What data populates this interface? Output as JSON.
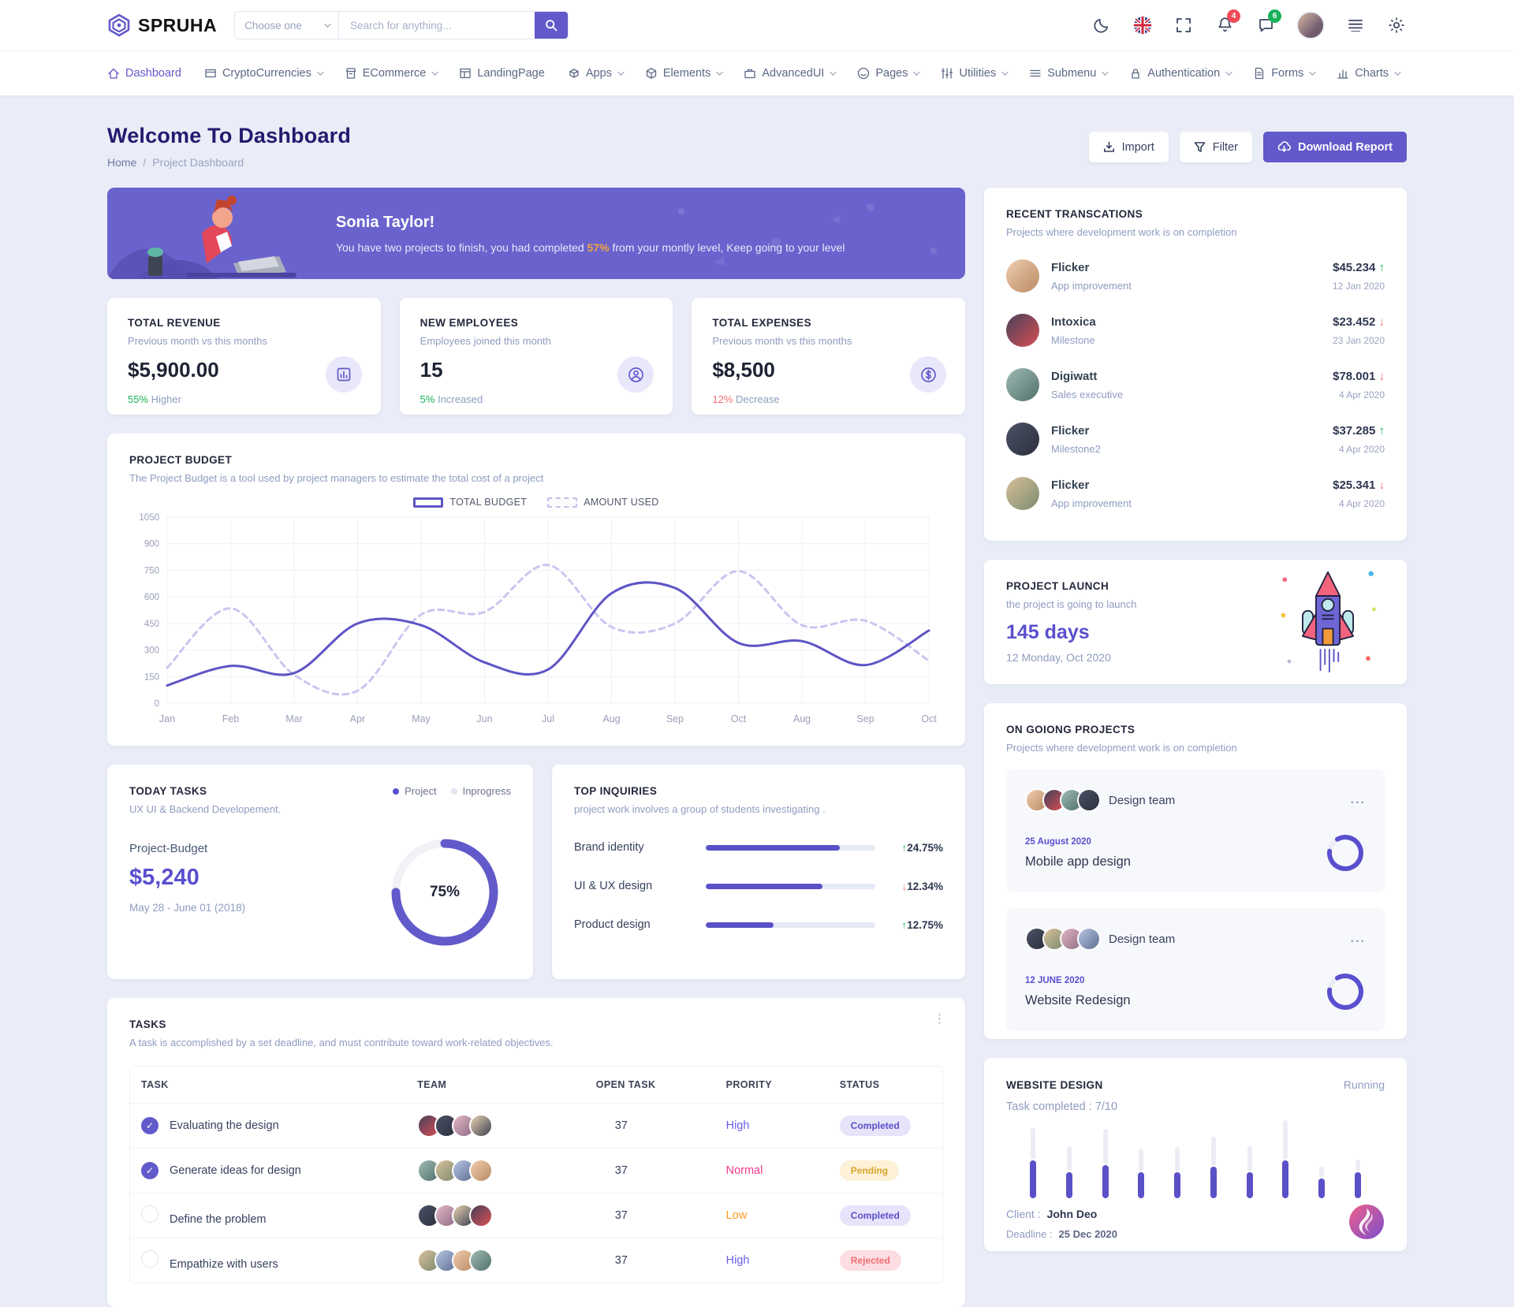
{
  "colors": {
    "primary": "#6259ca",
    "banner": "#6a63cd",
    "heading": "#231a6f",
    "green": "#19b159",
    "red": "#f16d75",
    "orange": "#ffab00",
    "pink": "#f1388b",
    "highlight": "#f3a43b",
    "line_solid": "#5e54c5",
    "line_dashed": "#c9c6ef"
  },
  "header": {
    "brand": "SPRUHA",
    "choose_label": "Choose one",
    "search_placeholder": "Search for anything...",
    "notification_count": "4",
    "message_count": "6"
  },
  "nav": {
    "items": [
      {
        "label": "Dashboard",
        "icon": "home-icon",
        "caret": false,
        "active": true
      },
      {
        "label": "CryptoCurrencies",
        "icon": "card-icon",
        "caret": true,
        "active": false
      },
      {
        "label": "ECommerce",
        "icon": "shop-icon",
        "caret": true,
        "active": false
      },
      {
        "label": "LandingPage",
        "icon": "layout-icon",
        "caret": false,
        "active": false
      },
      {
        "label": "Apps",
        "icon": "apps-icon",
        "caret": true,
        "active": false
      },
      {
        "label": "Elements",
        "icon": "box-icon",
        "caret": true,
        "active": false
      },
      {
        "label": "AdvancedUI",
        "icon": "briefcase-icon",
        "caret": true,
        "active": false
      },
      {
        "label": "Pages",
        "icon": "pages-icon",
        "caret": true,
        "active": false
      },
      {
        "label": "Utilities",
        "icon": "utilities-icon",
        "caret": true,
        "active": false
      },
      {
        "label": "Submenu",
        "icon": "submenu-icon",
        "caret": true,
        "active": false
      },
      {
        "label": "Authentication",
        "icon": "lock-icon",
        "caret": true,
        "active": false
      },
      {
        "label": "Forms",
        "icon": "file-icon",
        "caret": true,
        "active": false
      },
      {
        "label": "Charts",
        "icon": "chart-icon",
        "caret": true,
        "active": false
      }
    ]
  },
  "page": {
    "title": "Welcome To Dashboard",
    "breadcrumb_home": "Home",
    "breadcrumb_sep": "/",
    "breadcrumb_current": "Project Dashboard",
    "import_label": "Import",
    "filter_label": "Filter",
    "download_label": "Download Report"
  },
  "banner": {
    "name": "Sonia Taylor!",
    "msg_pre": "You have two projects to finish, you had completed ",
    "highlight": "57%",
    "msg_post": " from your montly level, Keep going to your level"
  },
  "stats": [
    {
      "title": "TOTAL REVENUE",
      "subtitle": "Previous month vs this months",
      "value": "$5,900.00",
      "change": "55%",
      "change_rest": " Higher",
      "trend": "up",
      "icon": "bar-chart-icon"
    },
    {
      "title": "NEW EMPLOYEES",
      "subtitle": "Employees joined this month",
      "value": "15",
      "change": "5%",
      "change_rest": " Increased",
      "trend": "up",
      "icon": "user-icon"
    },
    {
      "title": "TOTAL EXPENSES",
      "subtitle": "Previous month vs this months",
      "value": "$8,500",
      "change": "12%",
      "change_rest": " Decrease",
      "trend": "down",
      "icon": "dollar-icon"
    }
  ],
  "budget": {
    "title": "PROJECT BUDGET",
    "desc": "The Project Budget is a tool used by project managers to estimate the total cost of a project"
  },
  "chart_data": [
    {
      "id": "project-budget",
      "type": "line",
      "x": [
        "Jan",
        "Feb",
        "Mar",
        "Apr",
        "May",
        "Jun",
        "Jul",
        "Aug",
        "Sep",
        "Oct",
        "Aug",
        "Sep",
        "Oct"
      ],
      "series": [
        {
          "name": "TOTAL BUDGET",
          "style": "solid",
          "color": "#5e54c5",
          "values": [
            100,
            210,
            170,
            450,
            440,
            230,
            190,
            620,
            650,
            340,
            350,
            215,
            410
          ]
        },
        {
          "name": "AMOUNT USED",
          "style": "dashed",
          "color": "#c9c6ef",
          "values": [
            200,
            535,
            160,
            70,
            500,
            515,
            780,
            430,
            450,
            745,
            440,
            465,
            240
          ]
        }
      ],
      "ylim": [
        0,
        1050
      ],
      "yticks": [
        0,
        150,
        300,
        450,
        600,
        750,
        900,
        1050
      ],
      "grid": true,
      "legend_position": "top"
    },
    {
      "id": "today-tasks-donut",
      "type": "donut",
      "value": 75,
      "label": "75%",
      "color": "#6259ca",
      "track": "#f1f1f6"
    },
    {
      "id": "website-design-bars",
      "type": "bar",
      "totals": [
        57,
        42,
        56,
        40,
        41,
        50,
        42,
        63,
        25,
        31
      ],
      "fills": [
        31,
        21,
        27,
        21,
        21,
        26,
        21,
        31,
        16,
        21
      ]
    }
  ],
  "today": {
    "title": "TODAY TASKS",
    "legend": [
      {
        "label": "Project",
        "color": "#5a4fcf"
      },
      {
        "label": "Inprogress",
        "color": "#e3e6f0"
      }
    ],
    "subtitle": "UX UI & Backend Developement.",
    "label": "Project-Budget",
    "amount": "$5,240",
    "range": "May 28 - June 01 (2018)"
  },
  "inquiries": {
    "title": "TOP INQUIRIES",
    "desc": "project work involves a group of students investigating .",
    "rows": [
      {
        "label": "Brand identity",
        "bar_pct": 79,
        "change": "24.75%",
        "dir": "up"
      },
      {
        "label": "UI & UX design",
        "bar_pct": 69,
        "change": "12.34%",
        "dir": "down"
      },
      {
        "label": "Product design",
        "bar_pct": 40,
        "change": "12.75%",
        "dir": "up"
      }
    ]
  },
  "tasks": {
    "title": "TASKS",
    "desc": "A task is accomplished by a set deadline, and must contribute toward work-related objectives.",
    "headers": [
      "TASK",
      "TEAM",
      "OPEN TASK",
      "PRORITY",
      "STATUS"
    ],
    "rows": [
      {
        "task": "Evaluating the design",
        "checked": true,
        "open": "37",
        "priority": "High",
        "priority_color": "#6a5de8",
        "status": "Completed",
        "status_bg": "#e6e3fa",
        "status_color": "#5a50c7"
      },
      {
        "task": "Generate ideas for design",
        "checked": true,
        "open": "37",
        "priority": "Normal",
        "priority_color": "#f1388b",
        "status": "Pending",
        "status_bg": "#fdf1d8",
        "status_color": "#d7a52b"
      },
      {
        "task": "Define the problem",
        "checked": false,
        "open": "37",
        "priority": "Low",
        "priority_color": "#ff9b21",
        "status": "Completed",
        "status_bg": "#e6e3fa",
        "status_color": "#5a50c7"
      },
      {
        "task": "Empathize with users",
        "checked": false,
        "open": "37",
        "priority": "High",
        "priority_color": "#6a5de8",
        "status": "Rejected",
        "status_bg": "#fbdde2",
        "status_color": "#f16d75"
      }
    ]
  },
  "transactions": {
    "title": "RECENT TRANSCATIONS",
    "desc": "Projects where development work is on completion",
    "items": [
      {
        "name": "Flicker",
        "role": "App improvement",
        "amount": "$45.234",
        "date": "12 Jan 2020",
        "dir": "up"
      },
      {
        "name": "Intoxica",
        "role": "Milestone",
        "amount": "$23.452",
        "date": "23 Jan 2020",
        "dir": "down"
      },
      {
        "name": "Digiwatt",
        "role": "Sales executive",
        "amount": "$78.001",
        "date": "4 Apr 2020",
        "dir": "down"
      },
      {
        "name": "Flicker",
        "role": "Milestone2",
        "amount": "$37.285",
        "date": "4 Apr 2020",
        "dir": "up"
      },
      {
        "name": "Flicker",
        "role": "App improvement",
        "amount": "$25.341",
        "date": "4 Apr 2020",
        "dir": "down"
      }
    ]
  },
  "launch": {
    "title": "PROJECT LAUNCH",
    "desc": "the project is going to launch",
    "days": "145 days",
    "date": "12 Monday, Oct 2020"
  },
  "ongoing": {
    "title": "ON GOIONG PROJECTS",
    "desc": "Projects where development work is on completion",
    "projects": [
      {
        "team_label": "Design team",
        "date": "25 August 2020",
        "name": "Mobile app design",
        "progress": 0.85
      },
      {
        "team_label": "Design team",
        "date": "12 JUNE 2020",
        "name": "Website Redesign",
        "progress": 0.85
      }
    ]
  },
  "website": {
    "title": "WEBSITE DESIGN",
    "status": "Running",
    "completed": "Task completed : 7/10",
    "client_label": "Client :",
    "client": "John Deo",
    "deadline_label": "Deadline :",
    "deadline": "25 Dec 2020"
  },
  "avatar_gradients": [
    "linear-gradient(135deg,#f0cdaf,#b98a63)",
    "linear-gradient(135deg,#46405a,#d94f55)",
    "linear-gradient(135deg,#9fbab3,#51706a)",
    "linear-gradient(135deg,#4c5266,#2b2f3d)",
    "linear-gradient(135deg,#d9c09a,#7a8b6f)",
    "linear-gradient(135deg,#e3b8c6,#8f6b85)",
    "linear-gradient(135deg,#b8c6e3,#5f6e92)",
    "linear-gradient(135deg,#e8d3b0,#3b3f51)"
  ]
}
